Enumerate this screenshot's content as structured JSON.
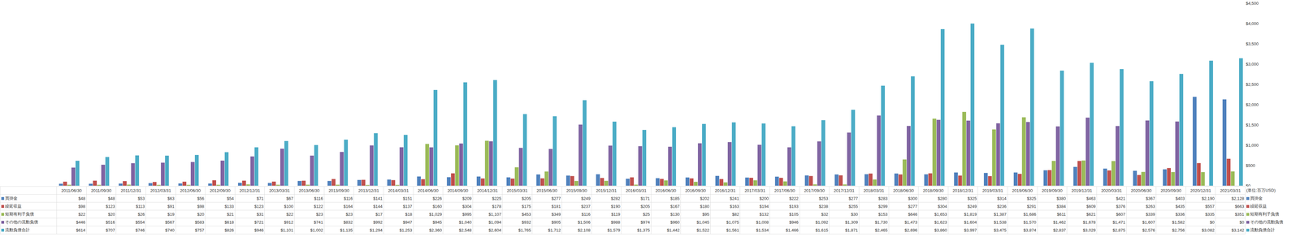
{
  "chart_data": {
    "type": "bar",
    "ylabel": "(単位:百万USD)",
    "categories": [
      "2011/06/30",
      "2011/09/30",
      "2011/12/31",
      "2012/03/31",
      "2012/06/30",
      "2012/09/30",
      "2012/12/31",
      "2013/03/31",
      "2013/06/30",
      "2013/09/30",
      "2013/12/31",
      "2014/03/31",
      "2014/06/30",
      "2014/09/30",
      "2014/12/31",
      "2015/03/31",
      "2015/06/30",
      "2015/09/30",
      "2015/12/31",
      "2016/03/31",
      "2016/06/30",
      "2016/09/30",
      "2016/12/31",
      "2017/03/31",
      "2017/06/30",
      "2017/09/30",
      "2017/12/31",
      "2018/03/31",
      "2018/06/30",
      "2018/09/30",
      "2018/12/31",
      "2019/03/31",
      "2019/06/30",
      "2019/09/30",
      "2019/12/31",
      "2020/03/31",
      "2020/06/30",
      "2020/09/30",
      "2020/12/31",
      "2021/03/31"
    ],
    "series": [
      {
        "name": "買掛金",
        "color": "#4F81BD",
        "values": [
          48,
          48,
          53,
          63,
          56,
          54,
          71,
          67,
          116,
          116,
          141,
          151,
          226,
          209,
          225,
          205,
          277,
          249,
          282,
          171,
          185,
          202,
          241,
          200,
          222,
          253,
          277,
          283,
          300,
          280,
          325,
          314,
          325,
          380,
          463,
          421,
          367,
          403,
          2190,
          2128
        ],
        "value_labels": [
          "$48",
          "$48",
          "$53",
          "$63",
          "$56",
          "$54",
          "$71",
          "$67",
          "$116",
          "$116",
          "$141",
          "$151",
          "$226",
          "$209",
          "$225",
          "$205",
          "$277",
          "$249",
          "$282",
          "$171",
          "$185",
          "$202",
          "$241",
          "$200",
          "$222",
          "$253",
          "$277",
          "$283",
          "$300",
          "$280",
          "$325",
          "$314",
          "$325",
          "$380",
          "$463",
          "$421",
          "$367",
          "$403",
          "$2,190",
          "$2,128"
        ]
      },
      {
        "name": "繰延収益",
        "color": "#C0504D",
        "values": [
          98,
          123,
          113,
          91,
          98,
          133,
          123,
          100,
          122,
          164,
          144,
          137,
          160,
          304,
          178,
          175,
          181,
          237,
          190,
          205,
          167,
          180,
          163,
          194,
          193,
          238,
          255,
          299,
          277,
          304,
          249,
          236,
          291,
          384,
          609,
          376,
          263,
          435,
          557,
          663
        ],
        "value_labels": [
          "$98",
          "$123",
          "$113",
          "$91",
          "$98",
          "$133",
          "$123",
          "$100",
          "$122",
          "$164",
          "$144",
          "$137",
          "$160",
          "$304",
          "$178",
          "$175",
          "$181",
          "$237",
          "$190",
          "$205",
          "$167",
          "$180",
          "$163",
          "$194",
          "$193",
          "$238",
          "$255",
          "$299",
          "$277",
          "$304",
          "$249",
          "$236",
          "$291",
          "$384",
          "$609",
          "$376",
          "$263",
          "$435",
          "$557",
          "$663"
        ]
      },
      {
        "name": "短期有利子負債",
        "color": "#9BBB59",
        "values": [
          22,
          20,
          26,
          19,
          20,
          21,
          31,
          22,
          23,
          23,
          17,
          18,
          1029,
          995,
          1107,
          453,
          349,
          116,
          119,
          25,
          130,
          95,
          82,
          132,
          105,
          32,
          30,
          153,
          646,
          1653,
          1819,
          1387,
          1686,
          611,
          621,
          607,
          339,
          336,
          335,
          351
        ],
        "value_labels": [
          "$22",
          "$20",
          "$26",
          "$19",
          "$20",
          "$21",
          "$31",
          "$22",
          "$23",
          "$23",
          "$17",
          "$18",
          "$1,029",
          "$995",
          "$1,107",
          "$453",
          "$349",
          "$116",
          "$119",
          "$25",
          "$130",
          "$95",
          "$82",
          "$132",
          "$105",
          "$32",
          "$30",
          "$153",
          "$646",
          "$1,653",
          "$1,819",
          "$1,387",
          "$1,686",
          "$611",
          "$621",
          "$607",
          "$339",
          "$336",
          "$335",
          "$351"
        ]
      },
      {
        "name": "その他の流動負債",
        "color": "#8064A2",
        "values": [
          446,
          516,
          554,
          567,
          583,
          618,
          721,
          912,
          741,
          832,
          992,
          947,
          945,
          1040,
          1094,
          932,
          905,
          1506,
          988,
          974,
          960,
          1045,
          1075,
          1008,
          946,
          1092,
          1309,
          1730,
          1473,
          1623,
          1604,
          1538,
          1570,
          1462,
          1678,
          1471,
          1607,
          1582,
          0,
          0
        ],
        "value_labels": [
          "$446",
          "$516",
          "$554",
          "$567",
          "$583",
          "$618",
          "$721",
          "$912",
          "$741",
          "$832",
          "$992",
          "$947",
          "$945",
          "$1,040",
          "$1,094",
          "$932",
          "$905",
          "$1,506",
          "$988",
          "$974",
          "$960",
          "$1,045",
          "$1,075",
          "$1,008",
          "$946",
          "$1,092",
          "$1,309",
          "$1,730",
          "$1,473",
          "$1,623",
          "$1,604",
          "$1,538",
          "$1,570",
          "$1,462",
          "$1,678",
          "$1,471",
          "$1,607",
          "$1,582",
          "$0",
          "$0"
        ]
      },
      {
        "name": "流動負債合計",
        "color": "#4BACC6",
        "values": [
          614,
          707,
          746,
          740,
          757,
          826,
          946,
          1101,
          1002,
          1135,
          1294,
          1253,
          2360,
          2548,
          2604,
          1765,
          1712,
          2108,
          1579,
          1375,
          1442,
          1522,
          1561,
          1534,
          1466,
          1615,
          1871,
          2465,
          2696,
          3860,
          3997,
          3475,
          3874,
          2837,
          3029,
          2875,
          2576,
          2756,
          3082,
          3142
        ],
        "value_labels": [
          "$614",
          "$707",
          "$746",
          "$740",
          "$757",
          "$826",
          "$946",
          "$1,101",
          "$1,002",
          "$1,135",
          "$1,294",
          "$1,253",
          "$2,360",
          "$2,548",
          "$2,604",
          "$1,765",
          "$1,712",
          "$2,108",
          "$1,579",
          "$1,375",
          "$1,442",
          "$1,522",
          "$1,561",
          "$1,534",
          "$1,466",
          "$1,615",
          "$1,871",
          "$2,465",
          "$2,696",
          "$3,860",
          "$3,997",
          "$3,475",
          "$3,874",
          "$2,837",
          "$3,029",
          "$2,875",
          "$2,576",
          "$2,756",
          "$3,082",
          "$3,142"
        ]
      }
    ],
    "ylim": [
      0,
      4500
    ],
    "yticks": [
      {
        "value": 0,
        "label": "$0"
      },
      {
        "value": 500,
        "label": "$500"
      },
      {
        "value": 1000,
        "label": "$1,000"
      },
      {
        "value": 1500,
        "label": "$1,500"
      },
      {
        "value": 2000,
        "label": "$2,000"
      },
      {
        "value": 2500,
        "label": "$2,500"
      },
      {
        "value": 3000,
        "label": "$3,000"
      },
      {
        "value": 3500,
        "label": "$3,500"
      },
      {
        "value": 4000,
        "label": "$4,000"
      },
      {
        "value": 4500,
        "label": "$4,500"
      }
    ],
    "grid": false,
    "legend": "right",
    "data_labels": false
  }
}
